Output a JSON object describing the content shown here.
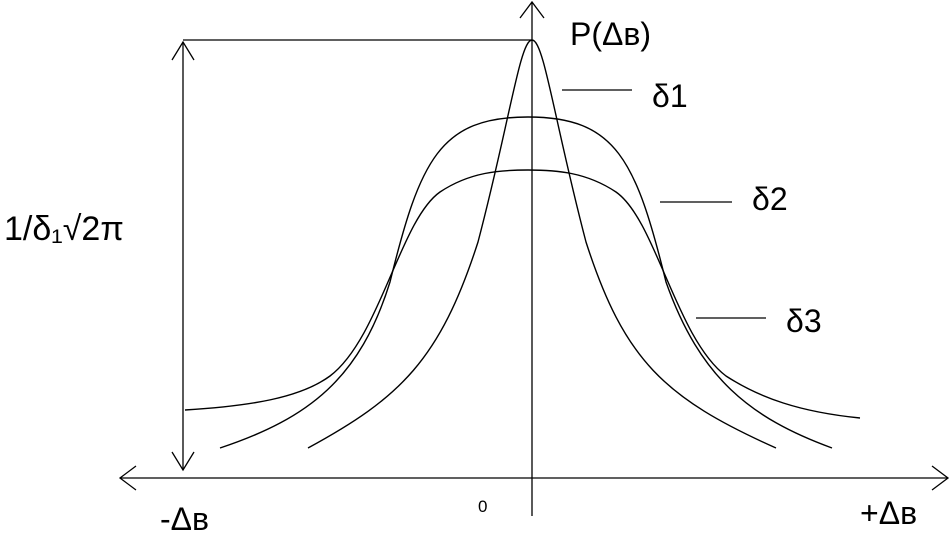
{
  "y_axis_label": "P(Δв)",
  "x_axis_left_label": "-Δв",
  "x_axis_right_label": "+Δв",
  "origin_label": "0",
  "peak_height_label": "1/δ₁√2π",
  "curves": [
    {
      "label": "δ1"
    },
    {
      "label": "δ2"
    },
    {
      "label": "δ3"
    }
  ]
}
